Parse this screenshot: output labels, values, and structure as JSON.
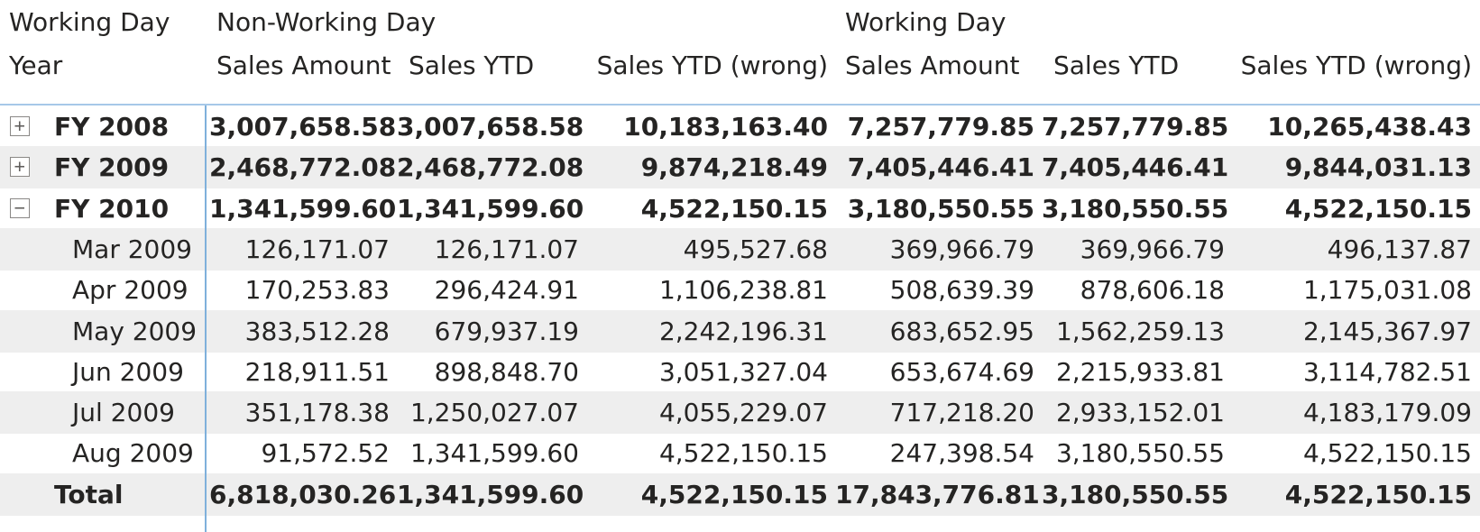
{
  "header": {
    "row_label_1": "Working Day",
    "row_label_2": "Year",
    "group_non_working": "Non-Working Day",
    "group_working": "Working Day",
    "columns": [
      "Sales Amount",
      "Sales YTD",
      "Sales YTD (wrong)",
      "Sales Amount",
      "Sales YTD",
      "Sales YTD (wrong)"
    ]
  },
  "rows": [
    {
      "label": "FY 2008",
      "toggle": "+",
      "bold": true,
      "values": [
        "3,007,658.58",
        "3,007,658.58",
        "10,183,163.40",
        "7,257,779.85",
        "7,257,779.85",
        "10,265,438.43"
      ]
    },
    {
      "label": "FY 2009",
      "toggle": "+",
      "bold": true,
      "values": [
        "2,468,772.08",
        "2,468,772.08",
        "9,874,218.49",
        "7,405,446.41",
        "7,405,446.41",
        "9,844,031.13"
      ]
    },
    {
      "label": "FY 2010",
      "toggle": "−",
      "bold": true,
      "values": [
        "1,341,599.60",
        "1,341,599.60",
        "4,522,150.15",
        "3,180,550.55",
        "3,180,550.55",
        "4,522,150.15"
      ]
    },
    {
      "label": "Mar 2009",
      "bold": false,
      "values": [
        "126,171.07",
        "126,171.07",
        "495,527.68",
        "369,966.79",
        "369,966.79",
        "496,137.87"
      ]
    },
    {
      "label": "Apr 2009",
      "bold": false,
      "values": [
        "170,253.83",
        "296,424.91",
        "1,106,238.81",
        "508,639.39",
        "878,606.18",
        "1,175,031.08"
      ]
    },
    {
      "label": "May 2009",
      "bold": false,
      "values": [
        "383,512.28",
        "679,937.19",
        "2,242,196.31",
        "683,652.95",
        "1,562,259.13",
        "2,145,367.97"
      ]
    },
    {
      "label": "Jun 2009",
      "bold": false,
      "values": [
        "218,911.51",
        "898,848.70",
        "3,051,327.04",
        "653,674.69",
        "2,215,933.81",
        "3,114,782.51"
      ]
    },
    {
      "label": "Jul 2009",
      "bold": false,
      "values": [
        "351,178.38",
        "1,250,027.07",
        "4,055,229.07",
        "717,218.20",
        "2,933,152.01",
        "4,183,179.09"
      ]
    },
    {
      "label": "Aug 2009",
      "bold": false,
      "values": [
        "91,572.52",
        "1,341,599.60",
        "4,522,150.15",
        "247,398.54",
        "3,180,550.55",
        "4,522,150.15"
      ]
    },
    {
      "label": "Total",
      "bold": true,
      "values": [
        "6,818,030.26",
        "1,341,599.60",
        "4,522,150.15",
        "17,843,776.81",
        "3,180,550.55",
        "4,522,150.15"
      ]
    }
  ],
  "colors": {
    "row_shade": "#eeeeee",
    "separator": "#7fb0db",
    "text": "#252423"
  }
}
